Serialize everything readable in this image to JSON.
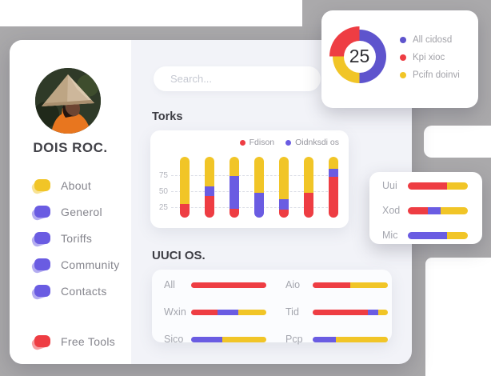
{
  "colors": {
    "red": "#ee3d43",
    "yellow": "#f1c527",
    "purple": "#6a5ce2",
    "donut_purple": "#5e54cd",
    "gray_bg": "#aaa9ab",
    "panel_bg": "#f2f3f8"
  },
  "sidebar": {
    "name": "DOIS ROC.",
    "items": [
      {
        "label": "About",
        "color": "yellow"
      },
      {
        "label": "Generol",
        "color": "purple"
      },
      {
        "label": "Toriffs",
        "color": "purple"
      },
      {
        "label": "Community",
        "color": "purple"
      },
      {
        "label": "Contacts",
        "color": "purple"
      }
    ],
    "footer": {
      "label": "Free Tools",
      "color": "red"
    }
  },
  "search": {
    "placeholder": "Search..."
  },
  "sections": {
    "torks_title": "Torks",
    "uuci_title": "UUCI OS."
  },
  "chart_data": [
    {
      "id": "donut",
      "type": "pie",
      "center_label": "25",
      "slices": [
        {
          "label": "All cidosd",
          "value": 50,
          "color": "donut_purple"
        },
        {
          "label": "Kpi xioc",
          "value": 25,
          "color": "red"
        },
        {
          "label": "Pcifn doinvi",
          "value": 25,
          "color": "yellow"
        }
      ],
      "legend_position": "right",
      "emphasized_slice": "Kpi xioc"
    },
    {
      "id": "torks",
      "type": "bar",
      "stacked": true,
      "title": "Torks",
      "legend": [
        {
          "label": "Fdison",
          "color": "red"
        },
        {
          "label": "Oidnksdi os",
          "color": "purple"
        }
      ],
      "yticks": [
        25,
        50,
        75
      ],
      "ylim": [
        0,
        110
      ],
      "bars_span": [
        10,
        104
      ],
      "grid": "dashed",
      "series": [
        {
          "name": "Fdison",
          "color": "red",
          "values": [
            21,
            34,
            14,
            0,
            13,
            39,
            63
          ]
        },
        {
          "name": "Oidnksdi os",
          "color": "purple",
          "values": [
            0,
            14,
            51,
            39,
            15,
            0,
            13
          ]
        },
        {
          "name": "(unlabeled)",
          "color": "yellow",
          "values": [
            73,
            46,
            29,
            55,
            66,
            55,
            18
          ]
        }
      ]
    },
    {
      "id": "uuci",
      "type": "bar-horizontal",
      "title": "UUCI OS.",
      "rows": [
        {
          "label": "All",
          "segments": [
            {
              "color": "red",
              "pct": 100
            }
          ]
        },
        {
          "label": "Wxin",
          "segments": [
            {
              "color": "red",
              "pct": 35
            },
            {
              "color": "purple",
              "pct": 28
            },
            {
              "color": "yellow",
              "pct": 37
            }
          ]
        },
        {
          "label": "Sico",
          "segments": [
            {
              "color": "purple",
              "pct": 42
            },
            {
              "color": "yellow",
              "pct": 58
            }
          ]
        },
        {
          "label": "Aio",
          "segments": [
            {
              "color": "red",
              "pct": 50
            },
            {
              "color": "yellow",
              "pct": 50
            }
          ]
        },
        {
          "label": "Tid",
          "segments": [
            {
              "color": "red",
              "pct": 73
            },
            {
              "color": "purple",
              "pct": 14
            },
            {
              "color": "yellow",
              "pct": 13
            }
          ]
        },
        {
          "label": "Pcp",
          "segments": [
            {
              "color": "purple",
              "pct": 31
            },
            {
              "color": "yellow",
              "pct": 69
            }
          ]
        }
      ]
    },
    {
      "id": "side",
      "type": "bar-horizontal",
      "rows": [
        {
          "label": "Uui",
          "segments": [
            {
              "color": "red",
              "pct": 65
            },
            {
              "color": "yellow",
              "pct": 35
            }
          ]
        },
        {
          "label": "Xod",
          "segments": [
            {
              "color": "red",
              "pct": 33
            },
            {
              "color": "purple",
              "pct": 22
            },
            {
              "color": "yellow",
              "pct": 45
            }
          ]
        },
        {
          "label": "Mic",
          "segments": [
            {
              "color": "purple",
              "pct": 65
            },
            {
              "color": "yellow",
              "pct": 35
            }
          ]
        }
      ]
    }
  ]
}
